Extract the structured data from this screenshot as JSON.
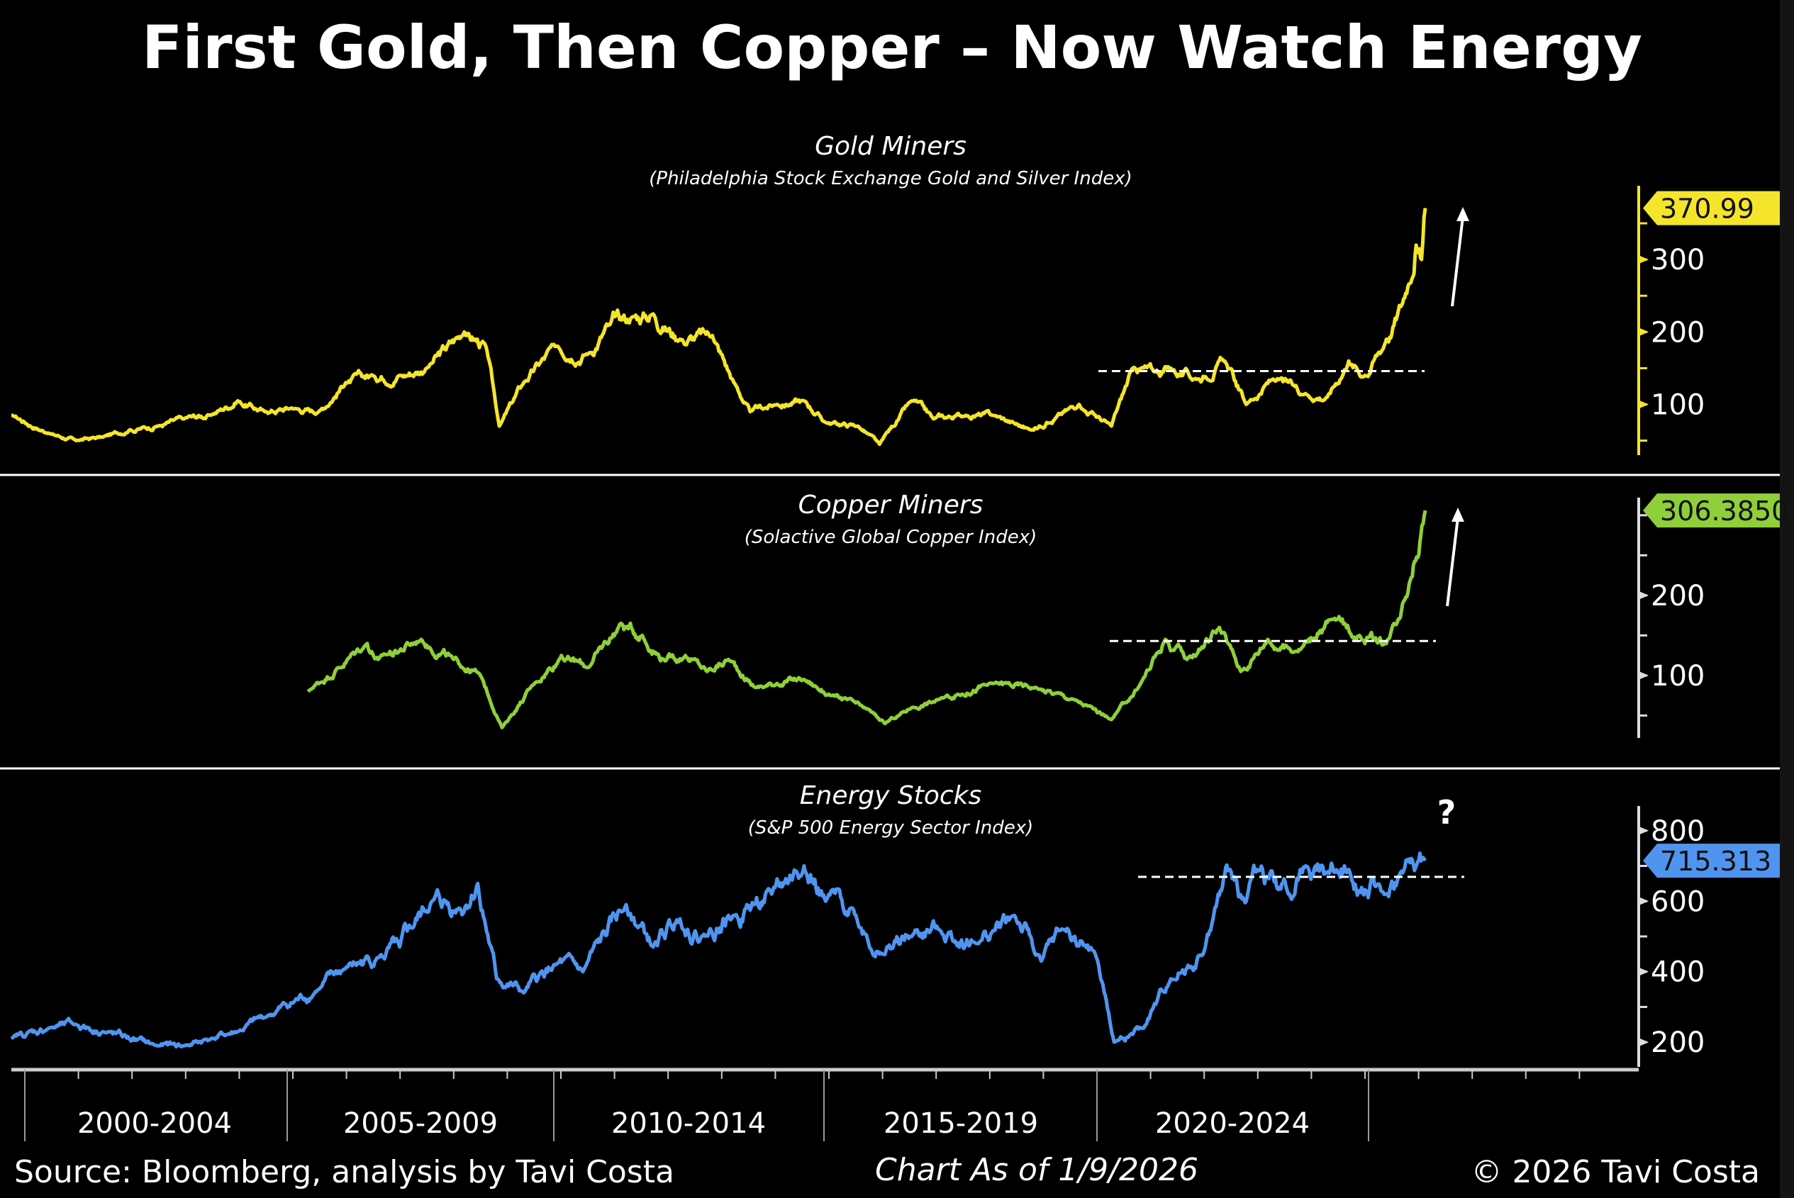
{
  "title": "First Gold, Then Copper – Now Watch Energy",
  "footer": {
    "source": "Source: Bloomberg, analysis by Tavi Costa",
    "as_of": "Chart As of 1/9/2026",
    "copyright": "© 2026 Tavi Costa"
  },
  "question_mark": "?",
  "chart_data": [
    {
      "type": "line",
      "title": "Gold Miners",
      "subtitle": "(Philadelphia Stock Exchange Gold and Silver Index)",
      "color": "#f5e52a",
      "axis_color": "#f5e52a",
      "last_value_label": "370.99",
      "yticks": [
        "100",
        "200",
        "300"
      ],
      "ylim": [
        30,
        398
      ],
      "resistance_level": 146,
      "annotation": "up-arrow",
      "points": [
        [
          1999.8,
          85
        ],
        [
          2000.5,
          60
        ],
        [
          2001,
          50
        ],
        [
          2001.5,
          55
        ],
        [
          2002,
          65
        ],
        [
          2002.5,
          70
        ],
        [
          2003,
          80
        ],
        [
          2003.5,
          85
        ],
        [
          2004,
          105
        ],
        [
          2004.5,
          90
        ],
        [
          2005,
          95
        ],
        [
          2005.5,
          90
        ],
        [
          2006,
          130
        ],
        [
          2006.5,
          140
        ],
        [
          2007,
          140
        ],
        [
          2007.5,
          150
        ],
        [
          2008.2,
          200
        ],
        [
          2008.6,
          180
        ],
        [
          2008.85,
          70
        ],
        [
          2009.3,
          130
        ],
        [
          2009.9,
          180
        ],
        [
          2010.5,
          170
        ],
        [
          2010.9,
          210
        ],
        [
          2011.3,
          220
        ],
        [
          2011.7,
          225
        ],
        [
          2012.2,
          190
        ],
        [
          2012.8,
          195
        ],
        [
          2013.2,
          130
        ],
        [
          2013.5,
          90
        ],
        [
          2014,
          100
        ],
        [
          2014.5,
          105
        ],
        [
          2014.9,
          75
        ],
        [
          2015.5,
          70
        ],
        [
          2015.9,
          45
        ],
        [
          2016.5,
          105
        ],
        [
          2016.9,
          80
        ],
        [
          2017.5,
          85
        ],
        [
          2018,
          85
        ],
        [
          2018.7,
          65
        ],
        [
          2019,
          75
        ],
        [
          2019.6,
          100
        ],
        [
          2020.2,
          70
        ],
        [
          2020.6,
          150
        ],
        [
          2021,
          145
        ],
        [
          2021.3,
          150
        ],
        [
          2021.8,
          135
        ],
        [
          2022.3,
          160
        ],
        [
          2022.7,
          100
        ],
        [
          2023.2,
          135
        ],
        [
          2023.8,
          115
        ],
        [
          2024.2,
          110
        ],
        [
          2024.6,
          160
        ],
        [
          2024.9,
          140
        ],
        [
          2025.3,
          190
        ],
        [
          2025.6,
          240
        ],
        [
          2025.85,
          320
        ],
        [
          2025.95,
          300
        ],
        [
          2026.02,
          371
        ]
      ]
    },
    {
      "type": "line",
      "title": "Copper Miners",
      "subtitle": "(Solactive Global Copper Index)",
      "color": "#8fcf3a",
      "axis_color": "#dddddd",
      "last_value_label": "306.3850",
      "yticks": [
        "100",
        "200"
      ],
      "ylim": [
        22,
        322
      ],
      "resistance_level": 143,
      "annotation": "up-arrow",
      "points": [
        [
          2005.3,
          80
        ],
        [
          2006.4,
          140
        ],
        [
          2006.6,
          120
        ],
        [
          2007.4,
          145
        ],
        [
          2008,
          120
        ],
        [
          2008.5,
          100
        ],
        [
          2008.9,
          35
        ],
        [
          2009.5,
          90
        ],
        [
          2010,
          125
        ],
        [
          2010.5,
          110
        ],
        [
          2011.1,
          165
        ],
        [
          2011.5,
          150
        ],
        [
          2011.9,
          120
        ],
        [
          2012.3,
          125
        ],
        [
          2012.7,
          105
        ],
        [
          2013.1,
          120
        ],
        [
          2013.6,
          85
        ],
        [
          2014,
          90
        ],
        [
          2014.5,
          95
        ],
        [
          2015,
          75
        ],
        [
          2015.6,
          60
        ],
        [
          2016,
          40
        ],
        [
          2016.5,
          60
        ],
        [
          2017,
          70
        ],
        [
          2018,
          90
        ],
        [
          2018.8,
          85
        ],
        [
          2019.5,
          70
        ],
        [
          2020.2,
          45
        ],
        [
          2020.7,
          85
        ],
        [
          2021.2,
          145
        ],
        [
          2021.6,
          120
        ],
        [
          2022.2,
          160
        ],
        [
          2022.6,
          105
        ],
        [
          2023.1,
          145
        ],
        [
          2023.6,
          130
        ],
        [
          2024.3,
          170
        ],
        [
          2024.8,
          150
        ],
        [
          2025.3,
          140
        ],
        [
          2025.6,
          190
        ],
        [
          2026.02,
          306
        ]
      ]
    },
    {
      "type": "line",
      "title": "Energy Stocks",
      "subtitle": "(S&P 500 Energy Sector Index)",
      "color": "#4f95f0",
      "axis_color": "#dddddd",
      "last_value_label": "715.313",
      "yticks": [
        "200",
        "400",
        "600",
        "800"
      ],
      "ylim": [
        130,
        870
      ],
      "resistance_level": 669,
      "annotation": "question-mark",
      "points": [
        [
          1999.8,
          210
        ],
        [
          2000.5,
          240
        ],
        [
          2001,
          250
        ],
        [
          2001.5,
          230
        ],
        [
          2002.5,
          190
        ],
        [
          2003,
          190
        ],
        [
          2003.5,
          210
        ],
        [
          2004,
          230
        ],
        [
          2004.5,
          270
        ],
        [
          2005.5,
          350
        ],
        [
          2006,
          410
        ],
        [
          2006.6,
          440
        ],
        [
          2007,
          470
        ],
        [
          2007.6,
          600
        ],
        [
          2008.1,
          580
        ],
        [
          2008.45,
          650
        ],
        [
          2008.8,
          380
        ],
        [
          2009.3,
          340
        ],
        [
          2009.9,
          420
        ],
        [
          2010.4,
          400
        ],
        [
          2011.2,
          590
        ],
        [
          2011.7,
          470
        ],
        [
          2012.2,
          550
        ],
        [
          2012.6,
          500
        ],
        [
          2013.2,
          560
        ],
        [
          2013.9,
          620
        ],
        [
          2014.5,
          700
        ],
        [
          2014.9,
          600
        ],
        [
          2015.4,
          580
        ],
        [
          2015.9,
          450
        ],
        [
          2016.5,
          500
        ],
        [
          2017,
          520
        ],
        [
          2017.7,
          480
        ],
        [
          2018.4,
          560
        ],
        [
          2018.9,
          430
        ],
        [
          2019.3,
          520
        ],
        [
          2019.9,
          450
        ],
        [
          2020.25,
          200
        ],
        [
          2020.8,
          240
        ],
        [
          2021.3,
          380
        ],
        [
          2021.9,
          450
        ],
        [
          2022.4,
          690
        ],
        [
          2022.7,
          600
        ],
        [
          2022.9,
          690
        ],
        [
          2023.5,
          620
        ],
        [
          2023.8,
          700
        ],
        [
          2024.2,
          680
        ],
        [
          2024.6,
          690
        ],
        [
          2025.3,
          620
        ],
        [
          2025.6,
          680
        ],
        [
          2026.02,
          715
        ]
      ]
    }
  ],
  "x_periods": [
    "2000-2004",
    "2005-2009",
    "2010-2014",
    "2015-2019",
    "2020-2024"
  ]
}
